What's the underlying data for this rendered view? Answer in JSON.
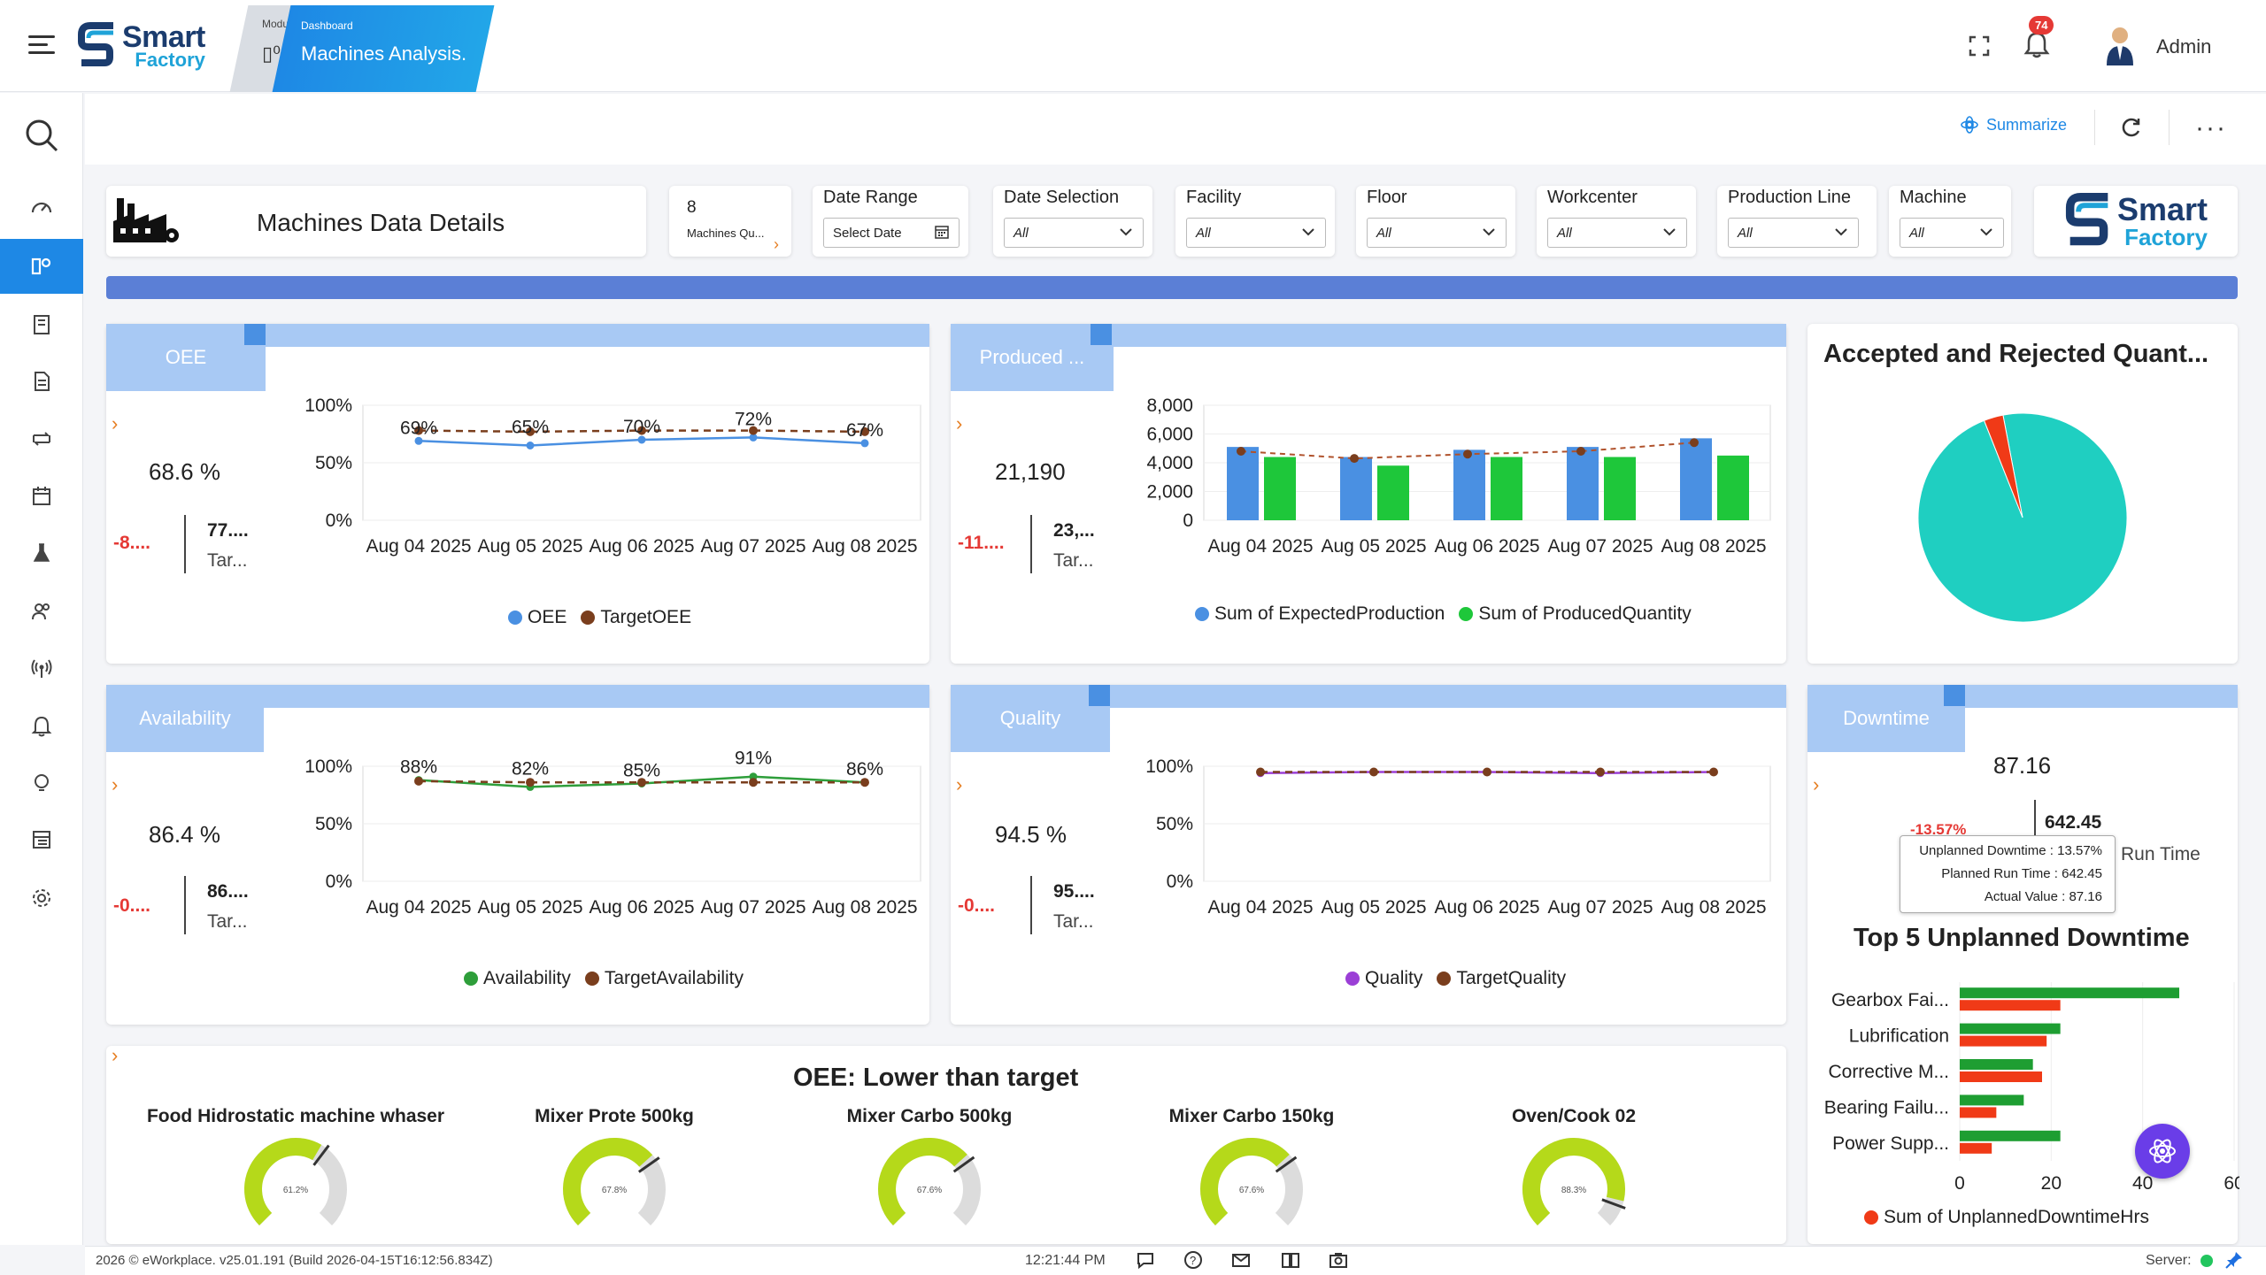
{
  "app": {
    "logo_line1": "Smart",
    "logo_line2": "Factory",
    "module_tab": "Modu",
    "dashboard_tab_small": "Dashboard",
    "dashboard_tab_title": "Machines Analysis.",
    "notification_count": "74",
    "user_name": "Admin"
  },
  "toolbar": {
    "summarize_label": "Summarize"
  },
  "filters": {
    "title": "Machines Data Details",
    "machines_count": "8",
    "machines_label": "Machines Qu...",
    "date_range_label": "Date Range",
    "date_range_value": "Select Date",
    "date_selection_label": "Date Selection",
    "date_selection_value": "All",
    "facility_label": "Facility",
    "facility_value": "All",
    "floor_label": "Floor",
    "floor_value": "All",
    "workcenter_label": "Workcenter",
    "workcenter_value": "All",
    "production_line_label": "Production Line",
    "production_line_value": "All",
    "machine_label": "Machine",
    "machine_value": "All"
  },
  "kpis": {
    "oee": {
      "title": "OEE",
      "value": "68.6 %",
      "delta": "-8....",
      "target_value": "77....",
      "target_label": "Tar..."
    },
    "produced": {
      "title": "Produced ...",
      "value": "21,190",
      "delta": "-11....",
      "target_value": "23,...",
      "target_label": "Tar..."
    },
    "availability": {
      "title": "Availability",
      "value": "86.4 %",
      "delta": "-0....",
      "target_value": "86....",
      "target_label": "Tar..."
    },
    "quality": {
      "title": "Quality",
      "value": "94.5 %",
      "delta": "-0....",
      "target_value": "95....",
      "target_label": "Tar..."
    },
    "downtime": {
      "title": "Downtime",
      "value": "87.16",
      "delta": "-13.57%",
      "run_value": "642.45",
      "run_label": "Run Time"
    }
  },
  "tooltip": {
    "row1_label": "Unplanned Downtime :",
    "row1_value": "13.57%",
    "row2_label": "Planned Run Time :",
    "row2_value": "642.45",
    "row3_label": "Actual Value :",
    "row3_value": "87.16"
  },
  "chart_data": [
    {
      "type": "line",
      "x": [
        "Aug 04 2025",
        "Aug 05 2025",
        "Aug 06 2025",
        "Aug 07 2025",
        "Aug 08 2025"
      ],
      "series": [
        {
          "name": "OEE",
          "values": [
            69,
            65,
            70,
            72,
            67
          ],
          "color": "#4a90e2"
        },
        {
          "name": "TargetOEE",
          "values": [
            78,
            77,
            78,
            78,
            77
          ],
          "color": "#7a3e1d"
        }
      ],
      "data_labels": [
        "69%",
        "65%",
        "70%",
        "72%",
        "67%"
      ],
      "yticks": [
        "0%",
        "50%",
        "100%"
      ],
      "ylim": [
        0,
        100
      ]
    },
    {
      "type": "bar",
      "categories": [
        "Aug 04 2025",
        "Aug 05 2025",
        "Aug 06 2025",
        "Aug 07 2025",
        "Aug 08 2025"
      ],
      "series": [
        {
          "name": "Sum of ExpectedProduction",
          "values": [
            5100,
            4400,
            4900,
            5100,
            5700
          ],
          "color": "#4a90e2"
        },
        {
          "name": "Sum of ProducedQuantity",
          "values": [
            4400,
            3800,
            4400,
            4400,
            4500
          ],
          "color": "#1ec73a"
        }
      ],
      "line_values": [
        4800,
        4300,
        4600,
        4800,
        5400
      ],
      "yticks": [
        "0",
        "2,000",
        "4,000",
        "6,000",
        "8,000"
      ],
      "ylim": [
        0,
        8000
      ]
    },
    {
      "type": "pie",
      "title": "Accepted and Rejected Quant...",
      "values": [
        97,
        3
      ],
      "colors": [
        "#1fcfc1",
        "#f03a17"
      ]
    },
    {
      "type": "line",
      "x": [
        "Aug 04 2025",
        "Aug 05 2025",
        "Aug 06 2025",
        "Aug 07 2025",
        "Aug 08 2025"
      ],
      "series": [
        {
          "name": "Availability",
          "values": [
            88,
            82,
            85,
            91,
            86
          ],
          "color": "#2e9e3a"
        },
        {
          "name": "TargetAvailability",
          "values": [
            87,
            86,
            86,
            86,
            86
          ],
          "color": "#7a3e1d"
        }
      ],
      "data_labels": [
        "88%",
        "82%",
        "85%",
        "91%",
        "86%"
      ],
      "yticks": [
        "0%",
        "50%",
        "100%"
      ],
      "ylim": [
        0,
        100
      ]
    },
    {
      "type": "line",
      "x": [
        "Aug 04 2025",
        "Aug 05 2025",
        "Aug 06 2025",
        "Aug 07 2025",
        "Aug 08 2025"
      ],
      "series": [
        {
          "name": "Quality",
          "values": [
            94,
            95,
            95,
            94,
            95
          ],
          "color": "#9b3fd6"
        },
        {
          "name": "TargetQuality",
          "values": [
            95,
            95,
            95,
            95,
            95
          ],
          "color": "#7a3e1d"
        }
      ],
      "yticks": [
        "0%",
        "50%",
        "100%"
      ],
      "ylim": [
        0,
        100
      ]
    },
    {
      "type": "bar",
      "title": "Top 5 Unplanned Downtime",
      "orientation": "horizontal",
      "categories": [
        "Gearbox Fai...",
        "Lubrification",
        "Corrective M...",
        "Bearing Failu...",
        "Power Supp..."
      ],
      "series": [
        {
          "name": "",
          "values": [
            48,
            22,
            16,
            14,
            22
          ],
          "color": "#1e9e32"
        },
        {
          "name": "Sum of UnplannedDowntimeHrs",
          "values": [
            22,
            19,
            18,
            8,
            7
          ],
          "color": "#f03a17"
        }
      ],
      "xticks": [
        "0",
        "20",
        "40",
        "60"
      ],
      "xlim": [
        0,
        60
      ]
    }
  ],
  "gauges": {
    "title": "OEE: Lower than target",
    "items": [
      {
        "name": "Food Hidrostatic machine whaser",
        "value": 61.2,
        "label": "61.2%"
      },
      {
        "name": "Mixer Prote 500kg",
        "value": 67.8,
        "label": "67.8%"
      },
      {
        "name": "Mixer Carbo 500kg",
        "value": 67.6,
        "label": "67.6%"
      },
      {
        "name": "Mixer Carbo 150kg",
        "value": 67.6,
        "label": "67.6%"
      },
      {
        "name": "Oven/Cook 02",
        "value": 88.3,
        "label": "88.3%"
      }
    ]
  },
  "footer": {
    "copyright": "2026 © eWorkplace. v25.01.191 (Build 2026-04-15T16:12:56.834Z)",
    "time": "12:21:44 PM",
    "server_label": "Server:"
  }
}
